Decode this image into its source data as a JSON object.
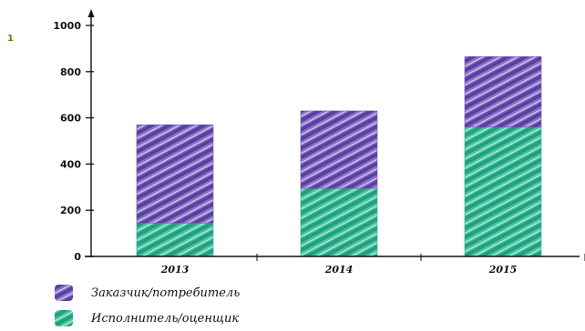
{
  "chart_data": {
    "type": "bar",
    "stacked": true,
    "categories": [
      "2013",
      "2014",
      "2015"
    ],
    "series": [
      {
        "name": "Исполнитель/оценщик",
        "values": [
          145,
          295,
          560
        ],
        "color": "#27b08e"
      },
      {
        "name": "Заказчик/потребитель",
        "values": [
          425,
          335,
          305
        ],
        "color": "#6a4fb3"
      }
    ],
    "ylim": [
      0,
      1000
    ],
    "yticks": [
      "0",
      "200",
      "400",
      "600",
      "800",
      "1000"
    ],
    "grid": false,
    "legend_position": "bottom-left",
    "title": "",
    "xlabel": "",
    "ylabel": "",
    "stray_mark": "1"
  }
}
